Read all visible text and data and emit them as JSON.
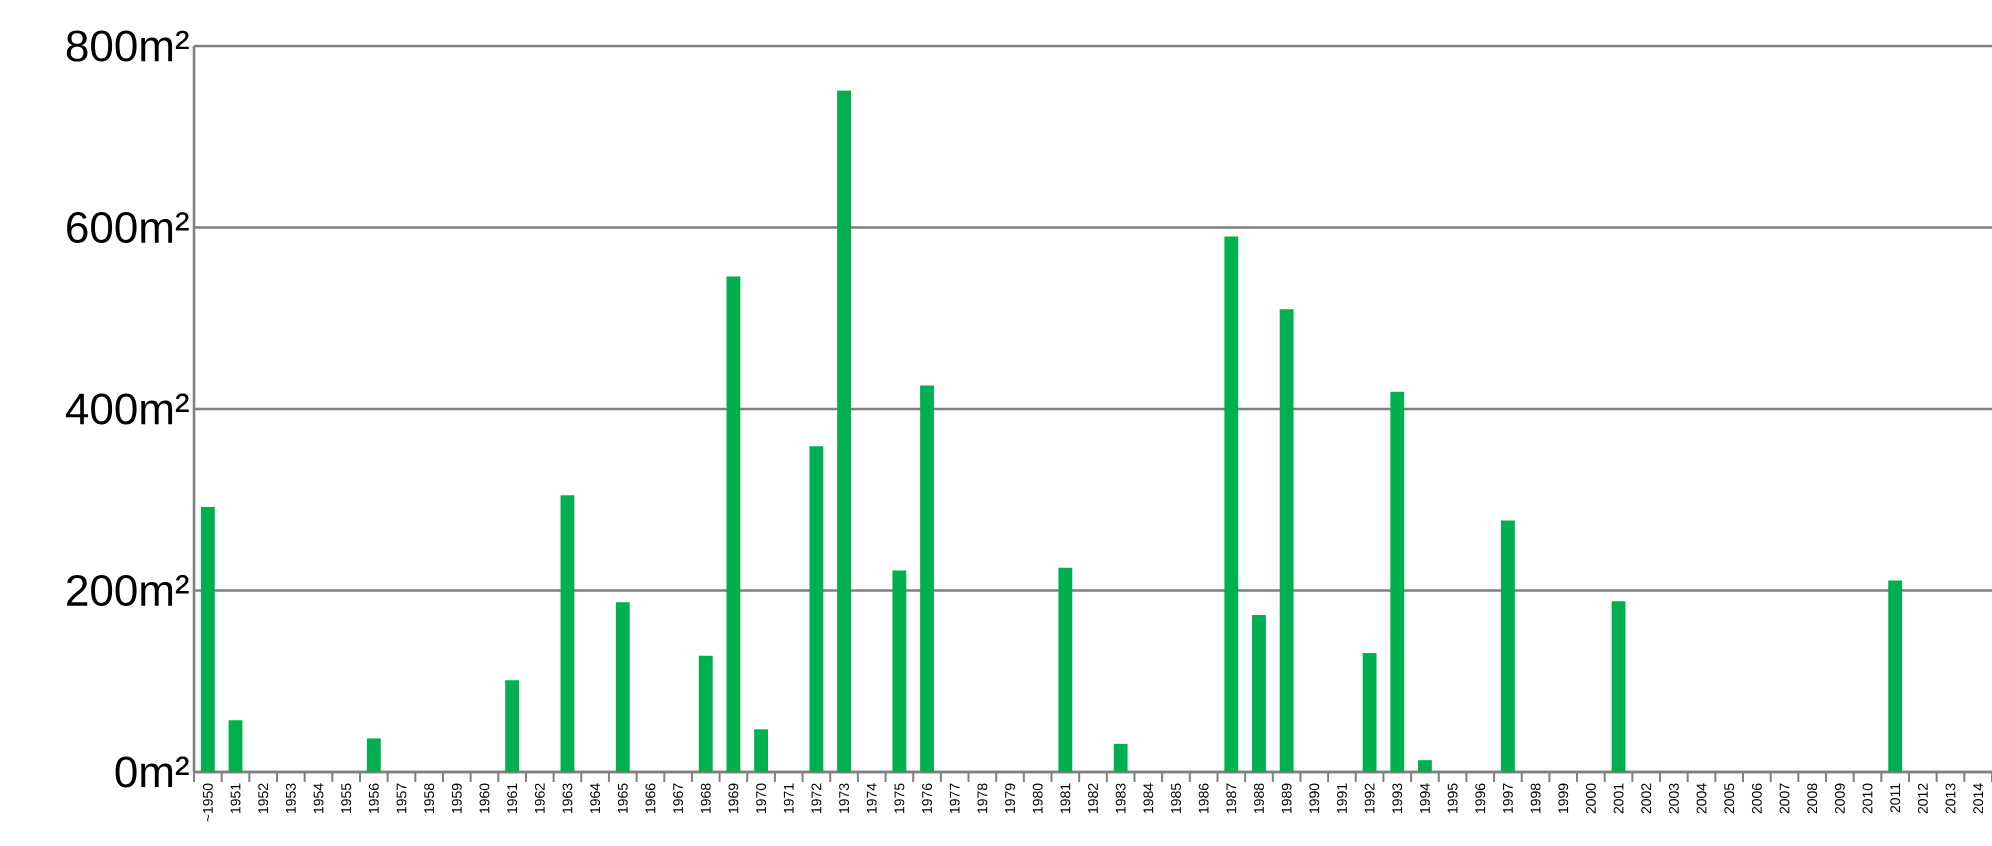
{
  "chart_data": {
    "type": "bar",
    "color": "#00b050",
    "grid": "y",
    "ylim": [
      0,
      800
    ],
    "yticks": [
      {
        "value": 0,
        "label": "0m²"
      },
      {
        "value": 200,
        "label": "200m²"
      },
      {
        "value": 400,
        "label": "400m²"
      },
      {
        "value": 600,
        "label": "600m²"
      },
      {
        "value": 800,
        "label": "800m²"
      }
    ],
    "categories": [
      "~1950",
      "1951",
      "1952",
      "1953",
      "1954",
      "1955",
      "1956",
      "1957",
      "1958",
      "1959",
      "1960",
      "1961",
      "1962",
      "1963",
      "1964",
      "1965",
      "1966",
      "1967",
      "1968",
      "1969",
      "1970",
      "1971",
      "1972",
      "1973",
      "1974",
      "1975",
      "1976",
      "1977",
      "1978",
      "1979",
      "1980",
      "1981",
      "1982",
      "1983",
      "1984",
      "1985",
      "1986",
      "1987",
      "1988",
      "1989",
      "1990",
      "1991",
      "1992",
      "1993",
      "1994",
      "1995",
      "1996",
      "1997",
      "1998",
      "1999",
      "2000",
      "2001",
      "2002",
      "2003",
      "2004",
      "2005",
      "2006",
      "2007",
      "2008",
      "2009",
      "2010",
      "2011",
      "2012",
      "2013",
      "2014"
    ],
    "values": [
      292,
      57,
      0,
      0,
      0,
      0,
      37,
      0,
      0,
      0,
      0,
      101,
      0,
      305,
      0,
      187,
      0,
      0,
      128,
      546,
      47,
      0,
      359,
      751,
      0,
      222,
      426,
      0,
      0,
      0,
      0,
      225,
      0,
      31,
      0,
      0,
      0,
      590,
      173,
      510,
      0,
      0,
      131,
      419,
      13,
      0,
      0,
      277,
      0,
      0,
      0,
      188,
      0,
      0,
      0,
      0,
      0,
      0,
      0,
      0,
      0,
      211,
      0,
      0,
      0
    ]
  }
}
